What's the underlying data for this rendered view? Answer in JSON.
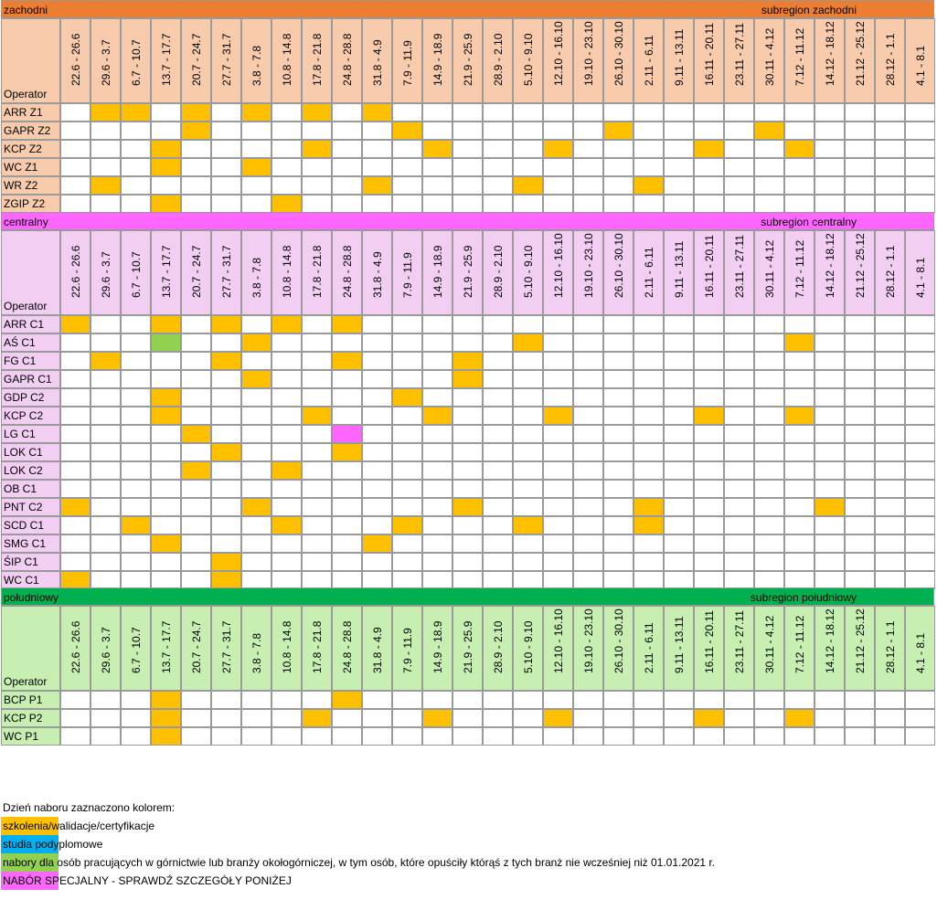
{
  "colors": {
    "training": "#ffc000",
    "postgrad": "#00b0f0",
    "mining": "#92d050",
    "special": "#ff66ff"
  },
  "operator_header": "Operator",
  "dates": [
    "22.6 - 26.6",
    "29.6 - 3.7",
    "6.7 - 10.7",
    "13.7 - 17.7",
    "20.7 - 24.7",
    "27.7 - 31.7",
    "3.8 - 7.8",
    "10.8 - 14.8",
    "17.8 - 21.8",
    "24.8 - 28.8",
    "31.8 - 4.9",
    "7.9 - 11.9",
    "14.9 - 18.9",
    "21.9 - 25.9",
    "28.9 - 2.10",
    "5.10 - 9.10",
    "12.10 - 16.10",
    "19.10 - 23.10",
    "26.10 - 30.10",
    "2.11 - 6.11",
    "9.11 - 13.11",
    "16.11 - 20.11",
    "23.11 - 27.11",
    "30.11 - 4.12",
    "7.12 - 11.12",
    "14.12 - 18.12",
    "21.12 - 25.12",
    "28.12 - 1.1",
    "4.1 - 8.1"
  ],
  "sections": [
    {
      "id": "zachodni",
      "name": "zachodni",
      "subregion": "subregion zachodni",
      "head_color": "#ed7d31",
      "light_color": "#f8cbad",
      "rows": [
        {
          "name": "ARR Z1",
          "marks": {
            "1": "training",
            "2": "training",
            "4": "training",
            "6": "training",
            "8": "training",
            "10": "training"
          }
        },
        {
          "name": "GAPR Z2",
          "marks": {
            "4": "training",
            "11": "training",
            "18": "training",
            "23": "training"
          }
        },
        {
          "name": "KCP Z2",
          "marks": {
            "3": "training",
            "8": "training",
            "12": "training",
            "16": "training",
            "21": "training",
            "24": "training"
          }
        },
        {
          "name": "WC Z1",
          "marks": {
            "3": "training",
            "6": "training"
          }
        },
        {
          "name": "WR Z2",
          "marks": {
            "1": "training",
            "10": "training",
            "15": "training",
            "19": "training"
          }
        },
        {
          "name": "ZGIP Z2",
          "marks": {
            "3": "training",
            "7": "training"
          }
        }
      ]
    },
    {
      "id": "centralny",
      "name": "centralny",
      "subregion": "subregion centralny",
      "head_color": "#ff66ff",
      "light_color": "#f2cef2",
      "rows": [
        {
          "name": "ARR C1",
          "marks": {
            "0": "training",
            "3": "training",
            "5": "training",
            "7": "training",
            "9": "training"
          }
        },
        {
          "name": "AŚ C1",
          "marks": {
            "3": "mining",
            "6": "training",
            "15": "training",
            "24": "training"
          }
        },
        {
          "name": "FG C1",
          "marks": {
            "1": "training",
            "5": "training",
            "9": "training",
            "13": "training"
          }
        },
        {
          "name": "GAPR C1",
          "marks": {
            "6": "training",
            "13": "training"
          }
        },
        {
          "name": "GDP C2",
          "marks": {
            "3": "training",
            "11": "training"
          }
        },
        {
          "name": "KCP C2",
          "marks": {
            "3": "training",
            "8": "training",
            "12": "training",
            "16": "training",
            "21": "training",
            "24": "training"
          }
        },
        {
          "name": "LG C1",
          "marks": {
            "4": "training",
            "9": "special"
          }
        },
        {
          "name": "LOK C1",
          "marks": {
            "5": "training",
            "9": "training"
          }
        },
        {
          "name": "LOK C2",
          "marks": {
            "4": "training",
            "7": "training"
          }
        },
        {
          "name": "OB C1",
          "marks": {}
        },
        {
          "name": "PNT C2",
          "marks": {
            "0": "training",
            "6": "training",
            "13": "training",
            "19": "training",
            "25": "training"
          }
        },
        {
          "name": "SCD C1",
          "marks": {
            "2": "training",
            "7": "training",
            "11": "training",
            "15": "training",
            "19": "training"
          }
        },
        {
          "name": "SMG C1",
          "marks": {
            "3": "training",
            "10": "training"
          }
        },
        {
          "name": "ŚIP C1",
          "marks": {
            "5": "training"
          }
        },
        {
          "name": "WC C1",
          "marks": {
            "0": "training",
            "5": "training"
          }
        }
      ]
    },
    {
      "id": "poludniowy",
      "name": "południowy",
      "subregion": "subregion południowy",
      "head_color": "#00b050",
      "light_color": "#c6efb1",
      "rows": [
        {
          "name": "BCP P1",
          "marks": {
            "3": "training",
            "9": "training"
          }
        },
        {
          "name": "KCP P2",
          "marks": {
            "3": "training",
            "8": "training",
            "12": "training",
            "16": "training",
            "21": "training",
            "24": "training"
          }
        },
        {
          "name": "WC P1",
          "marks": {
            "3": "training"
          }
        }
      ]
    }
  ],
  "legend": {
    "intro": "Dzień naboru zaznaczono kolorem:",
    "items": [
      {
        "key": "training",
        "text": "szkolenia/walidacje/certyfikacje"
      },
      {
        "key": "postgrad",
        "text": "studia podyplomowe"
      },
      {
        "key": "mining",
        "text": "nabory dla osób pracujących w górnictwie lub branży okołogórniczej, w tym osób, które opuściły którąś z tych branż nie wcześniej niż 01.01.2021 r."
      },
      {
        "key": "special",
        "text": "NABÓR SPECJALNY - SPRAWDŹ SZCZEGÓŁY PONIŻEJ"
      }
    ]
  }
}
